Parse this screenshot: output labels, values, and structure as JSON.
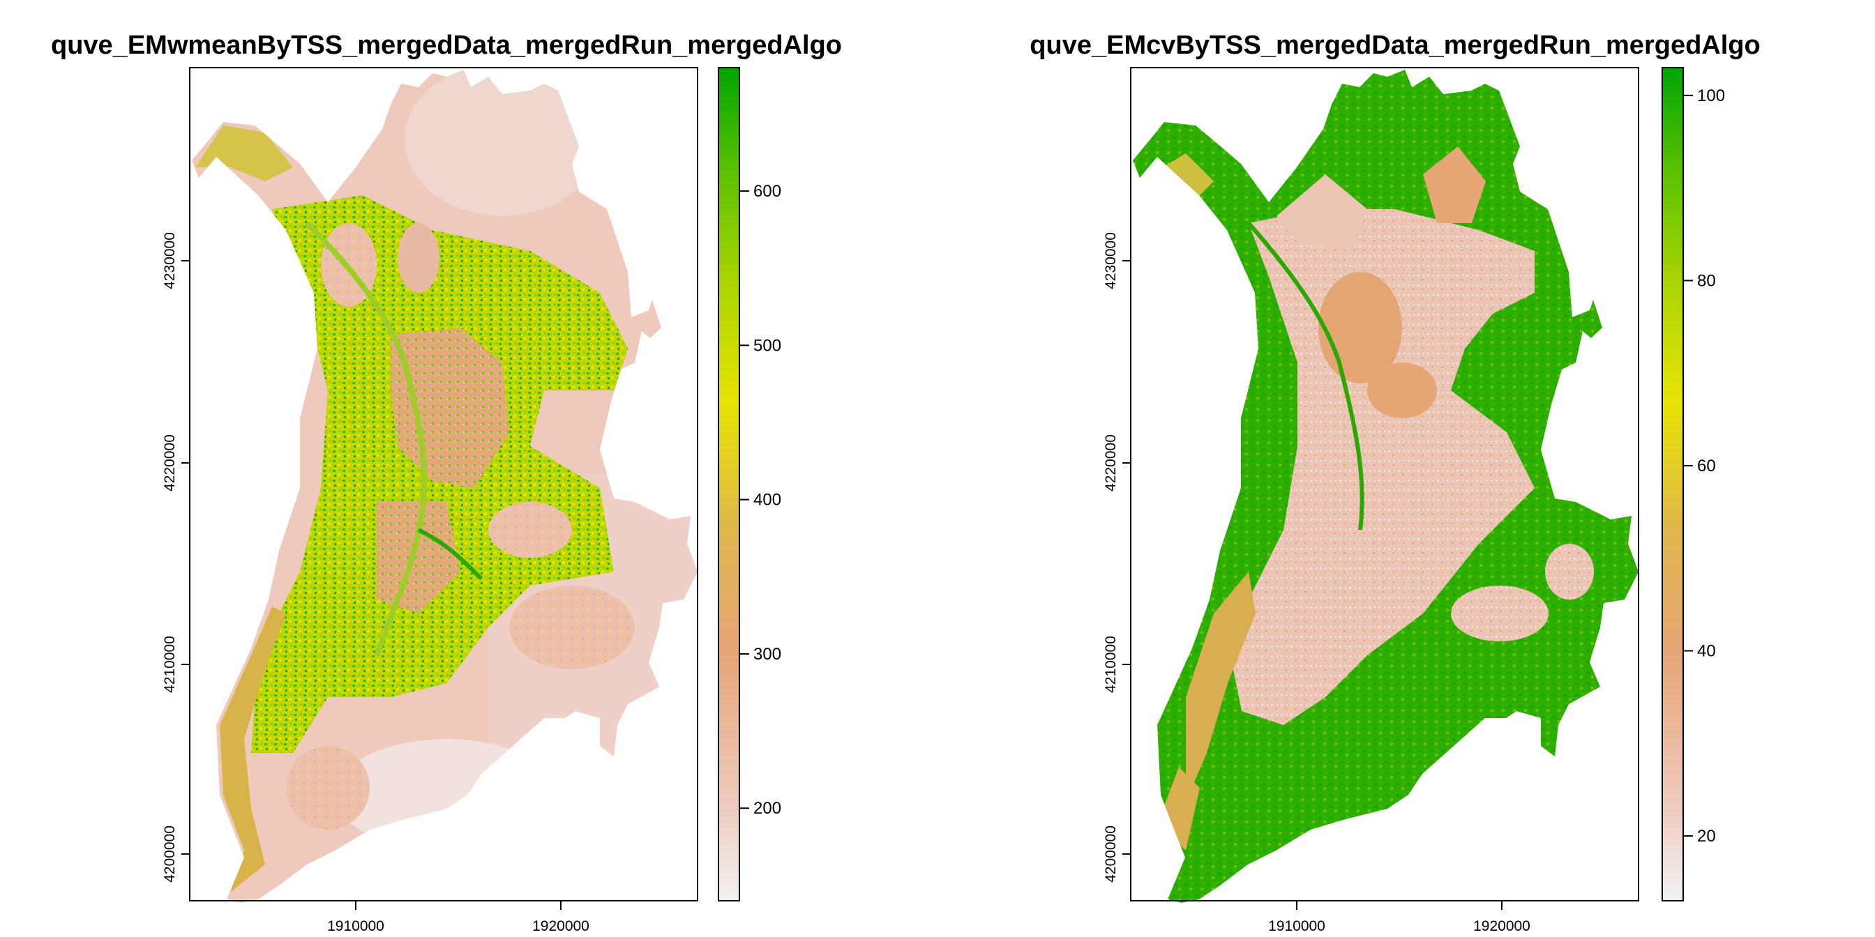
{
  "panels": [
    {
      "title": "quve_EMwmeanByTSS_mergedData_mergedRun_mergedAlgo",
      "x_ticks": [
        "1910000",
        "1920000"
      ],
      "y_ticks": [
        "4200000",
        "4210000",
        "4220000",
        "4230000"
      ],
      "colorbar": {
        "range": [
          140,
          680
        ],
        "ticks": [
          {
            "value": 200,
            "label": "200"
          },
          {
            "value": 300,
            "label": "300"
          },
          {
            "value": 400,
            "label": "400"
          },
          {
            "value": 500,
            "label": "500"
          },
          {
            "value": 600,
            "label": "600"
          }
        ]
      }
    },
    {
      "title": "quve_EMcvByTSS_mergedData_mergedRun_mergedAlgo",
      "x_ticks": [
        "1910000",
        "1920000"
      ],
      "y_ticks": [
        "4200000",
        "4210000",
        "4220000",
        "4230000"
      ],
      "colorbar": {
        "range": [
          13,
          103
        ],
        "ticks": [
          {
            "value": 20,
            "label": "20"
          },
          {
            "value": 40,
            "label": "40"
          },
          {
            "value": 60,
            "label": "60"
          },
          {
            "value": 80,
            "label": "80"
          },
          {
            "value": 100,
            "label": "100"
          }
        ]
      }
    }
  ],
  "colors": {
    "ramp": [
      "#f2f2f2",
      "#eec9bc",
      "#e6a676",
      "#e0b84a",
      "#e6e400",
      "#a6d400",
      "#58c000",
      "#00a600"
    ],
    "frame": "#000000"
  }
}
